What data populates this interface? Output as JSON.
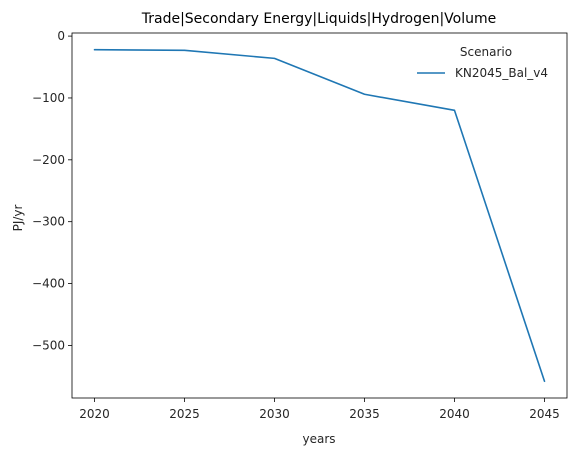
{
  "chart_data": {
    "type": "line",
    "title": "Trade|Secondary Energy|Liquids|Hydrogen|Volume",
    "xlabel": "years",
    "ylabel": "PJ/yr",
    "x": [
      2020,
      2025,
      2030,
      2035,
      2040,
      2045
    ],
    "series": [
      {
        "name": "KN2045_Bal_v4",
        "color": "#1f77b4",
        "values": [
          -22,
          -23,
          -36,
          -94,
          -120,
          -558
        ]
      }
    ],
    "xlim": [
      2018.75,
      2046.25
    ],
    "ylim": [
      -585,
      5
    ],
    "xticks": [
      2020,
      2025,
      2030,
      2035,
      2040,
      2045
    ],
    "yticks": [
      0,
      -100,
      -200,
      -300,
      -400,
      -500
    ],
    "ytick_labels": [
      "0",
      "−100",
      "−200",
      "−300",
      "−400",
      "−500"
    ],
    "grid": false,
    "legend": {
      "title": "Scenario",
      "placement": "top-right",
      "frame": false
    }
  }
}
